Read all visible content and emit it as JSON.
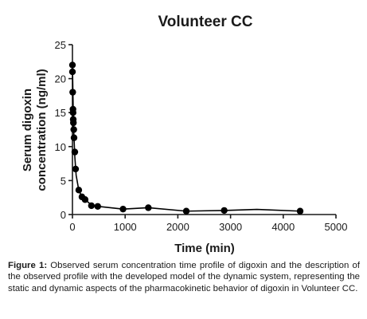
{
  "chart_data": {
    "type": "scatter",
    "title": "Volunteer CC",
    "ylabel_lines": [
      "Serum digoxin",
      "concentration (ng/ml)"
    ],
    "xlabel": "Time (min)",
    "xlim": [
      0,
      5000
    ],
    "ylim": [
      0,
      25
    ],
    "x_ticks": [
      0,
      1000,
      2000,
      3000,
      4000,
      5000
    ],
    "y_ticks": [
      0,
      5,
      10,
      15,
      20,
      25
    ],
    "grid": false,
    "series": [
      {
        "points": [
          {
            "x": 0,
            "y": 22.0
          },
          {
            "x": 0,
            "y": 21.0
          },
          {
            "x": 5,
            "y": 18.0
          },
          {
            "x": 10,
            "y": 15.5
          },
          {
            "x": 12,
            "y": 15.0
          },
          {
            "x": 15,
            "y": 14.0
          },
          {
            "x": 18,
            "y": 13.5
          },
          {
            "x": 25,
            "y": 12.5
          },
          {
            "x": 30,
            "y": 11.3
          },
          {
            "x": 45,
            "y": 9.2
          },
          {
            "x": 60,
            "y": 6.7
          },
          {
            "x": 120,
            "y": 3.6
          },
          {
            "x": 180,
            "y": 2.6
          },
          {
            "x": 240,
            "y": 2.2
          },
          {
            "x": 360,
            "y": 1.3
          },
          {
            "x": 480,
            "y": 1.2
          },
          {
            "x": 960,
            "y": 0.8
          },
          {
            "x": 1440,
            "y": 1.0
          },
          {
            "x": 2160,
            "y": 0.5
          },
          {
            "x": 2880,
            "y": 0.6
          },
          {
            "x": 4320,
            "y": 0.5
          }
        ],
        "curve": [
          {
            "x": 0,
            "y": 22.0
          },
          {
            "x": 20,
            "y": 13.0
          },
          {
            "x": 45,
            "y": 8.5
          },
          {
            "x": 70,
            "y": 5.8
          },
          {
            "x": 120,
            "y": 3.6
          },
          {
            "x": 180,
            "y": 2.6
          },
          {
            "x": 240,
            "y": 2.2
          },
          {
            "x": 360,
            "y": 1.4
          },
          {
            "x": 480,
            "y": 1.2
          },
          {
            "x": 960,
            "y": 0.8
          },
          {
            "x": 1440,
            "y": 1.0
          },
          {
            "x": 2160,
            "y": 0.5
          },
          {
            "x": 2880,
            "y": 0.6
          },
          {
            "x": 3500,
            "y": 0.75
          },
          {
            "x": 4320,
            "y": 0.5
          }
        ]
      }
    ],
    "marker_color": "#000000",
    "line_color": "#000000"
  },
  "caption": {
    "label": "Figure 1:",
    "text": " Observed serum concentration time profile of digoxin and the description of the observed profile with the developed model of the dynamic system, representing the static and dynamic aspects of the pharmacokinetic behavior of digoxin in Volunteer CC."
  }
}
